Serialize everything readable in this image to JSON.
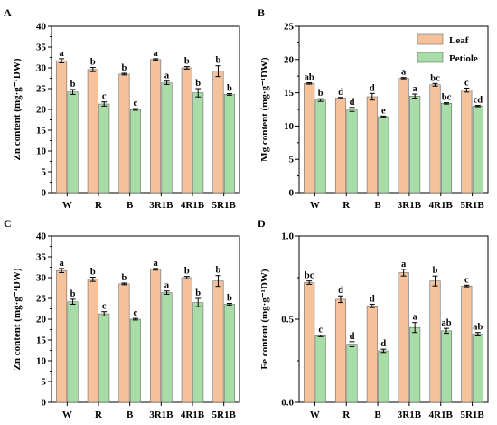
{
  "colors": {
    "leaf": "#f5c29b",
    "petiole": "#a9dda7",
    "bar_stroke": "#6b6b6b",
    "axis": "#000000"
  },
  "legend": {
    "placement": "top-right",
    "entries": [
      "Leaf",
      "Petiole"
    ]
  },
  "chart_data": [
    {
      "panel": "A",
      "type": "bar",
      "categories": [
        "W",
        "R",
        "B",
        "3R1B",
        "4R1B",
        "5R1B"
      ],
      "ylabel": "Zn content (mg·g⁻¹DW)",
      "ylim": [
        0,
        40
      ],
      "yticks": [
        "0",
        "5",
        "10",
        "15",
        "20",
        "25",
        "30",
        "35",
        "40"
      ],
      "series": [
        {
          "name": "Leaf",
          "values": [
            31.7,
            29.6,
            28.5,
            32.0,
            30.0,
            29.2
          ],
          "errors": [
            0.5,
            0.5,
            0.2,
            0.2,
            0.3,
            1.3
          ],
          "letters": [
            "a",
            "b",
            "b",
            "a",
            "b",
            "b"
          ]
        },
        {
          "name": "Petiole",
          "values": [
            24.2,
            21.3,
            20.0,
            26.4,
            24.0,
            23.6
          ],
          "errors": [
            0.6,
            0.5,
            0.2,
            0.4,
            1.0,
            0.2
          ],
          "letters": [
            "b",
            "c",
            "c",
            "a",
            "b",
            "b"
          ]
        }
      ]
    },
    {
      "panel": "B",
      "type": "bar",
      "categories": [
        "W",
        "R",
        "B",
        "3R1B",
        "4R1B",
        "5R1B"
      ],
      "ylabel": "Mg content (mg·g⁻¹DW)",
      "ylim": [
        0,
        25
      ],
      "yticks": [
        "0",
        "5",
        "10",
        "15",
        "20",
        "25"
      ],
      "series": [
        {
          "name": "Leaf",
          "values": [
            16.4,
            14.2,
            14.4,
            17.2,
            16.2,
            15.4
          ],
          "errors": [
            0.1,
            0.1,
            0.5,
            0.1,
            0.2,
            0.3
          ],
          "letters": [
            "ab",
            "d",
            "d",
            "a",
            "bc",
            "c"
          ]
        },
        {
          "name": "Petiole",
          "values": [
            13.9,
            12.5,
            11.4,
            14.5,
            13.4,
            13.0
          ],
          "errors": [
            0.2,
            0.3,
            0.1,
            0.3,
            0.1,
            0.1
          ],
          "letters": [
            "b",
            "d",
            "e",
            "a",
            "bc",
            "cd"
          ]
        }
      ]
    },
    {
      "panel": "C",
      "type": "bar",
      "categories": [
        "W",
        "R",
        "B",
        "3R1B",
        "4R1B",
        "5R1B"
      ],
      "ylabel": "Zn content (mg·g⁻¹DW)",
      "ylim": [
        0,
        40
      ],
      "yticks": [
        "0",
        "5",
        "10",
        "15",
        "20",
        "25",
        "30",
        "35",
        "40"
      ],
      "series": [
        {
          "name": "Leaf",
          "values": [
            31.7,
            29.6,
            28.5,
            32.0,
            30.0,
            29.2
          ],
          "errors": [
            0.5,
            0.5,
            0.2,
            0.2,
            0.3,
            1.3
          ],
          "letters": [
            "a",
            "b",
            "b",
            "a",
            "b",
            "b"
          ]
        },
        {
          "name": "Petiole",
          "values": [
            24.2,
            21.3,
            20.0,
            26.4,
            24.0,
            23.6
          ],
          "errors": [
            0.6,
            0.5,
            0.2,
            0.4,
            1.0,
            0.2
          ],
          "letters": [
            "b",
            "c",
            "c",
            "a",
            "b",
            "b"
          ]
        }
      ]
    },
    {
      "panel": "D",
      "type": "bar",
      "categories": [
        "W",
        "R",
        "B",
        "3R1B",
        "4R1B",
        "5R1B"
      ],
      "ylabel": "Fe content (mg·g⁻¹DW)",
      "ylim": [
        0,
        1.0
      ],
      "yticks": [
        "0.0",
        "0.5",
        "1.0"
      ],
      "series": [
        {
          "name": "Leaf",
          "values": [
            0.72,
            0.62,
            0.58,
            0.78,
            0.73,
            0.7
          ],
          "errors": [
            0.01,
            0.02,
            0.01,
            0.02,
            0.03,
            0.005
          ],
          "letters": [
            "bc",
            "d",
            "d",
            "a",
            "b",
            "c"
          ]
        },
        {
          "name": "Petiole",
          "values": [
            0.4,
            0.35,
            0.31,
            0.45,
            0.43,
            0.41
          ],
          "errors": [
            0.005,
            0.015,
            0.01,
            0.03,
            0.015,
            0.01
          ],
          "letters": [
            "c",
            "d",
            "d",
            "a",
            "ab",
            "ab"
          ]
        }
      ]
    }
  ]
}
